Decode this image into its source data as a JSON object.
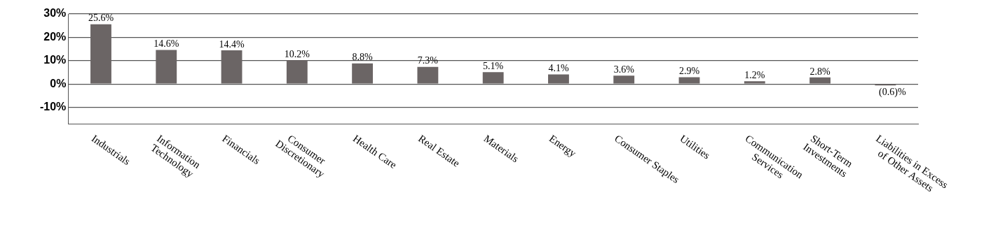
{
  "chart_data": {
    "type": "bar",
    "categories": [
      "Industrials",
      "Information\nTechnology",
      "Financials",
      "Consumer\nDiscretionary",
      "Health Care",
      "Real Estate",
      "Materials",
      "Energy",
      "Consumer Staples",
      "Utilities",
      "Communication\nServices",
      "Short-Term\nInvestments",
      "Liabilities in Excess\nof Other Assets"
    ],
    "values": [
      25.6,
      14.6,
      14.4,
      10.2,
      8.8,
      7.3,
      5.1,
      4.1,
      3.6,
      2.9,
      1.2,
      2.8,
      -0.6
    ],
    "value_labels": [
      "25.6%",
      "14.6%",
      "14.4%",
      "10.2%",
      "8.8%",
      "7.3%",
      "5.1%",
      "4.1%",
      "3.6%",
      "2.9%",
      "1.2%",
      "2.8%",
      "(0.6)%"
    ],
    "color": "#6b6565",
    "ylim": [
      -17,
      30
    ],
    "yticks": [
      {
        "value": -10,
        "label": "-10%"
      },
      {
        "value": 0,
        "label": "0%"
      },
      {
        "value": 10,
        "label": "10%"
      },
      {
        "value": 20,
        "label": "20%"
      },
      {
        "value": 30,
        "label": "30%"
      }
    ],
    "grid": "y",
    "legend": false
  }
}
